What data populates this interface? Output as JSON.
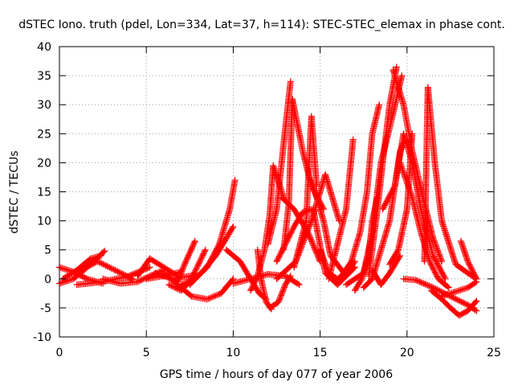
{
  "chart_data": {
    "type": "scatter",
    "title": "dSTEC Iono. truth (pdel, Lon=334, Lat=37, h=114): STEC-STEC_elemax in phase cont.",
    "xlabel": "GPS time / hours of day 077 of year 2006",
    "ylabel": "dSTEC  / TECUs",
    "xlim": [
      0,
      25
    ],
    "ylim": [
      -10,
      40
    ],
    "xticks": [
      0,
      5,
      10,
      15,
      20,
      25
    ],
    "yticks": [
      -10,
      -5,
      0,
      5,
      10,
      15,
      20,
      25,
      30,
      35,
      40
    ],
    "grid": true,
    "marker": "+",
    "color": "#ff0000",
    "series": [
      {
        "x": [
          0.0,
          0.8,
          1.6,
          2.5
        ],
        "y": [
          2.0,
          1.2,
          0.0,
          -0.8
        ]
      },
      {
        "x": [
          0.0,
          0.8,
          1.6,
          2.6
        ],
        "y": [
          -0.8,
          0.0,
          2.0,
          4.8
        ]
      },
      {
        "x": [
          0.2,
          1.0,
          1.8,
          2.4
        ],
        "y": [
          0.0,
          1.5,
          3.5,
          4.0
        ]
      },
      {
        "x": [
          1.2,
          2.2,
          3.2,
          4.2
        ],
        "y": [
          1.5,
          3.0,
          1.5,
          0.0
        ]
      },
      {
        "x": [
          1.0,
          2.5,
          4.0,
          5.2
        ],
        "y": [
          -1.0,
          -0.5,
          0.5,
          2.0
        ]
      },
      {
        "x": [
          2.5,
          3.5,
          4.5,
          5.2,
          6.0
        ],
        "y": [
          0.0,
          -0.8,
          -0.5,
          0.5,
          1.5
        ]
      },
      {
        "x": [
          4.5,
          5.2,
          6.0,
          6.8
        ],
        "y": [
          0.5,
          3.5,
          2.0,
          0.5
        ]
      },
      {
        "x": [
          5.0,
          6.0,
          7.0
        ],
        "y": [
          0.0,
          0.5,
          1.2
        ]
      },
      {
        "x": [
          5.5,
          6.5,
          7.5,
          8.0
        ],
        "y": [
          1.0,
          0.0,
          0.5,
          0.5
        ]
      },
      {
        "x": [
          6.0,
          6.8,
          7.6,
          8.5,
          9.3,
          10.0
        ],
        "y": [
          1.0,
          -1.0,
          -3.0,
          -3.5,
          -2.5,
          0.0
        ]
      },
      {
        "x": [
          6.8,
          7.2,
          7.8
        ],
        "y": [
          -0.5,
          2.5,
          6.5
        ]
      },
      {
        "x": [
          6.3,
          7.0,
          7.5,
          8.0,
          8.4
        ],
        "y": [
          -1.0,
          -2.0,
          -0.5,
          2.5,
          5.0
        ]
      },
      {
        "x": [
          7.0,
          7.8,
          8.5,
          9.2,
          9.8,
          10.1
        ],
        "y": [
          -1.0,
          0.0,
          2.0,
          6.0,
          12.0,
          17.0
        ]
      },
      {
        "x": [
          7.5,
          8.3,
          9.0,
          9.6,
          10.0
        ],
        "y": [
          -1.0,
          1.5,
          4.0,
          7.0,
          9.0
        ]
      },
      {
        "x": [
          9.6,
          10.4,
          11.0,
          11.5,
          11.9
        ],
        "y": [
          5.0,
          3.0,
          0.0,
          -2.5,
          -3.5
        ]
      },
      {
        "x": [
          10.0,
          11.0,
          12.0,
          13.0,
          13.8
        ],
        "y": [
          -0.8,
          0.0,
          0.8,
          0.5,
          -1.0
        ]
      },
      {
        "x": [
          11.4,
          11.6,
          11.9,
          12.2
        ],
        "y": [
          5.0,
          0.0,
          -4.0,
          -5.2
        ]
      },
      {
        "x": [
          11.0,
          11.4,
          11.8,
          12.1,
          12.3,
          12.9
        ],
        "y": [
          -2.0,
          0.5,
          5.0,
          11.0,
          19.5,
          14.0
        ]
      },
      {
        "x": [
          12.1,
          12.6,
          13.0,
          13.3
        ],
        "y": [
          -5.0,
          -4.0,
          -1.0,
          0.5
        ]
      },
      {
        "x": [
          12.5,
          13.0,
          13.5,
          14.0,
          14.5
        ],
        "y": [
          3.0,
          6.0,
          9.0,
          11.5,
          12.0
        ]
      },
      {
        "x": [
          12.0,
          12.5,
          13.0,
          13.3
        ],
        "y": [
          6.0,
          12.0,
          26.0,
          34.0
        ]
      },
      {
        "x": [
          12.9,
          13.2,
          13.4,
          14.0,
          14.5,
          15.2
        ],
        "y": [
          5.0,
          13.0,
          31.0,
          22.0,
          16.0,
          12.0
        ]
      },
      {
        "x": [
          12.8,
          13.5,
          14.3,
          15.0
        ],
        "y": [
          14.0,
          12.0,
          8.0,
          3.0
        ]
      },
      {
        "x": [
          13.5,
          14.2,
          14.5,
          14.8
        ],
        "y": [
          2.0,
          10.0,
          28.0,
          16.0
        ]
      },
      {
        "x": [
          12.5,
          13.6,
          14.5,
          15.3,
          16.1
        ],
        "y": [
          0.0,
          3.0,
          10.0,
          18.0,
          10.0
        ]
      },
      {
        "x": [
          14.5,
          15.2,
          15.6,
          16.5
        ],
        "y": [
          17.0,
          10.0,
          4.0,
          0.5
        ]
      },
      {
        "x": [
          14.6,
          15.3,
          16.0,
          17.0
        ],
        "y": [
          12.0,
          1.0,
          -1.0,
          2.0
        ]
      },
      {
        "x": [
          15.0,
          15.5,
          16.0,
          16.5,
          17.0
        ],
        "y": [
          5.0,
          1.0,
          0.0,
          1.0,
          3.0
        ]
      },
      {
        "x": [
          15.5,
          16.0,
          16.5,
          16.9
        ],
        "y": [
          0.0,
          6.0,
          12.0,
          24.0
        ]
      },
      {
        "x": [
          16.0,
          16.8,
          17.3,
          17.7,
          18.0,
          18.4
        ],
        "y": [
          -0.5,
          3.0,
          8.0,
          15.0,
          25.0,
          30.0
        ]
      },
      {
        "x": [
          16.5,
          17.5,
          18.0,
          18.5,
          19.0,
          19.7
        ],
        "y": [
          -1.0,
          1.0,
          8.0,
          20.0,
          26.0,
          35.0
        ]
      },
      {
        "x": [
          17.0,
          17.4,
          17.8,
          18.0,
          18.3
        ],
        "y": [
          -2.0,
          0.0,
          4.0,
          10.0,
          14.0
        ]
      },
      {
        "x": [
          17.5,
          18.0,
          18.5,
          19.0,
          19.3,
          19.6,
          19.9
        ],
        "y": [
          -1.5,
          0.0,
          5.0,
          10.0,
          16.0,
          22.0,
          24.0
        ]
      },
      {
        "x": [
          17.8,
          18.3,
          18.6,
          19.0,
          19.4
        ],
        "y": [
          0.5,
          12.0,
          20.0,
          30.0,
          36.5
        ]
      },
      {
        "x": [
          18.0,
          18.5,
          19.0,
          19.6
        ],
        "y": [
          1.5,
          -1.0,
          1.0,
          4.0
        ]
      },
      {
        "x": [
          19.2,
          19.8,
          20.3,
          21.0,
          21.5,
          22.0
        ],
        "y": [
          36.0,
          30.0,
          22.0,
          13.0,
          7.0,
          3.0
        ]
      },
      {
        "x": [
          18.6,
          19.3,
          19.8,
          20.3,
          20.8,
          21.5,
          22.2
        ],
        "y": [
          12.0,
          16.0,
          25.0,
          20.0,
          12.0,
          4.0,
          0.0
        ]
      },
      {
        "x": [
          19.0,
          19.5,
          20.0,
          20.3
        ],
        "y": [
          2.5,
          5.0,
          12.0,
          25.0
        ]
      },
      {
        "x": [
          19.6,
          20.3,
          20.8,
          21.3,
          21.8,
          22.4
        ],
        "y": [
          20.0,
          14.0,
          8.0,
          3.0,
          0.0,
          -1.5
        ]
      },
      {
        "x": [
          19.8,
          20.5,
          21.5,
          22.5,
          23.5,
          24.0
        ],
        "y": [
          0.0,
          -0.2,
          -1.5,
          -3.0,
          -4.5,
          -5.5
        ]
      },
      {
        "x": [
          21.0,
          21.2,
          21.6,
          22.0,
          22.8,
          23.5,
          24.0
        ],
        "y": [
          3.0,
          33.0,
          20.0,
          10.0,
          2.5,
          1.0,
          0.0
        ]
      },
      {
        "x": [
          21.4,
          22.0,
          22.5,
          23.0,
          23.5,
          24.0
        ],
        "y": [
          -2.0,
          -3.5,
          -5.0,
          -6.3,
          -5.5,
          -3.8
        ]
      },
      {
        "x": [
          22.0,
          22.5,
          23.0,
          23.5,
          24.0
        ],
        "y": [
          -3.0,
          -2.5,
          -2.0,
          -1.5,
          -0.5
        ]
      },
      {
        "x": [
          23.1,
          23.5,
          24.0
        ],
        "y": [
          6.5,
          3.0,
          0.0
        ]
      }
    ]
  }
}
